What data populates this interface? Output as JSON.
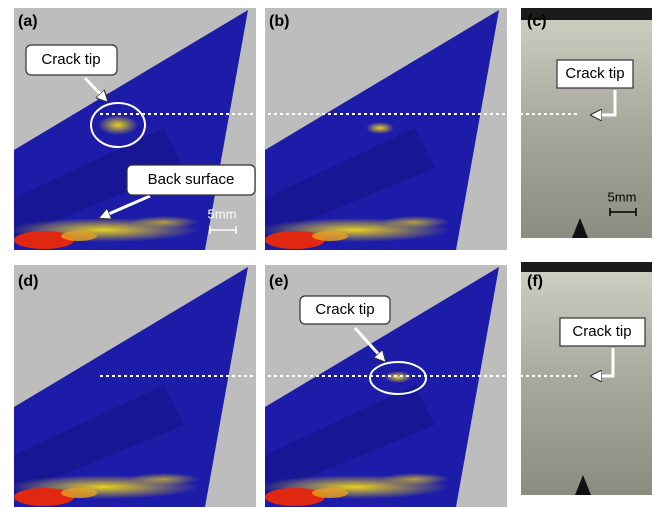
{
  "panels": [
    {
      "label": "(a)",
      "callouts": [
        "Crack tip",
        "Back surface"
      ],
      "scale": "5mm"
    },
    {
      "label": "(b)"
    },
    {
      "label": "(c)",
      "callouts": [
        "Crack tip"
      ],
      "scale": "5mm"
    },
    {
      "label": "(d)"
    },
    {
      "label": "(e)",
      "callouts": [
        "Crack tip"
      ]
    },
    {
      "label": "(f)",
      "callouts": [
        "Crack tip"
      ]
    }
  ]
}
